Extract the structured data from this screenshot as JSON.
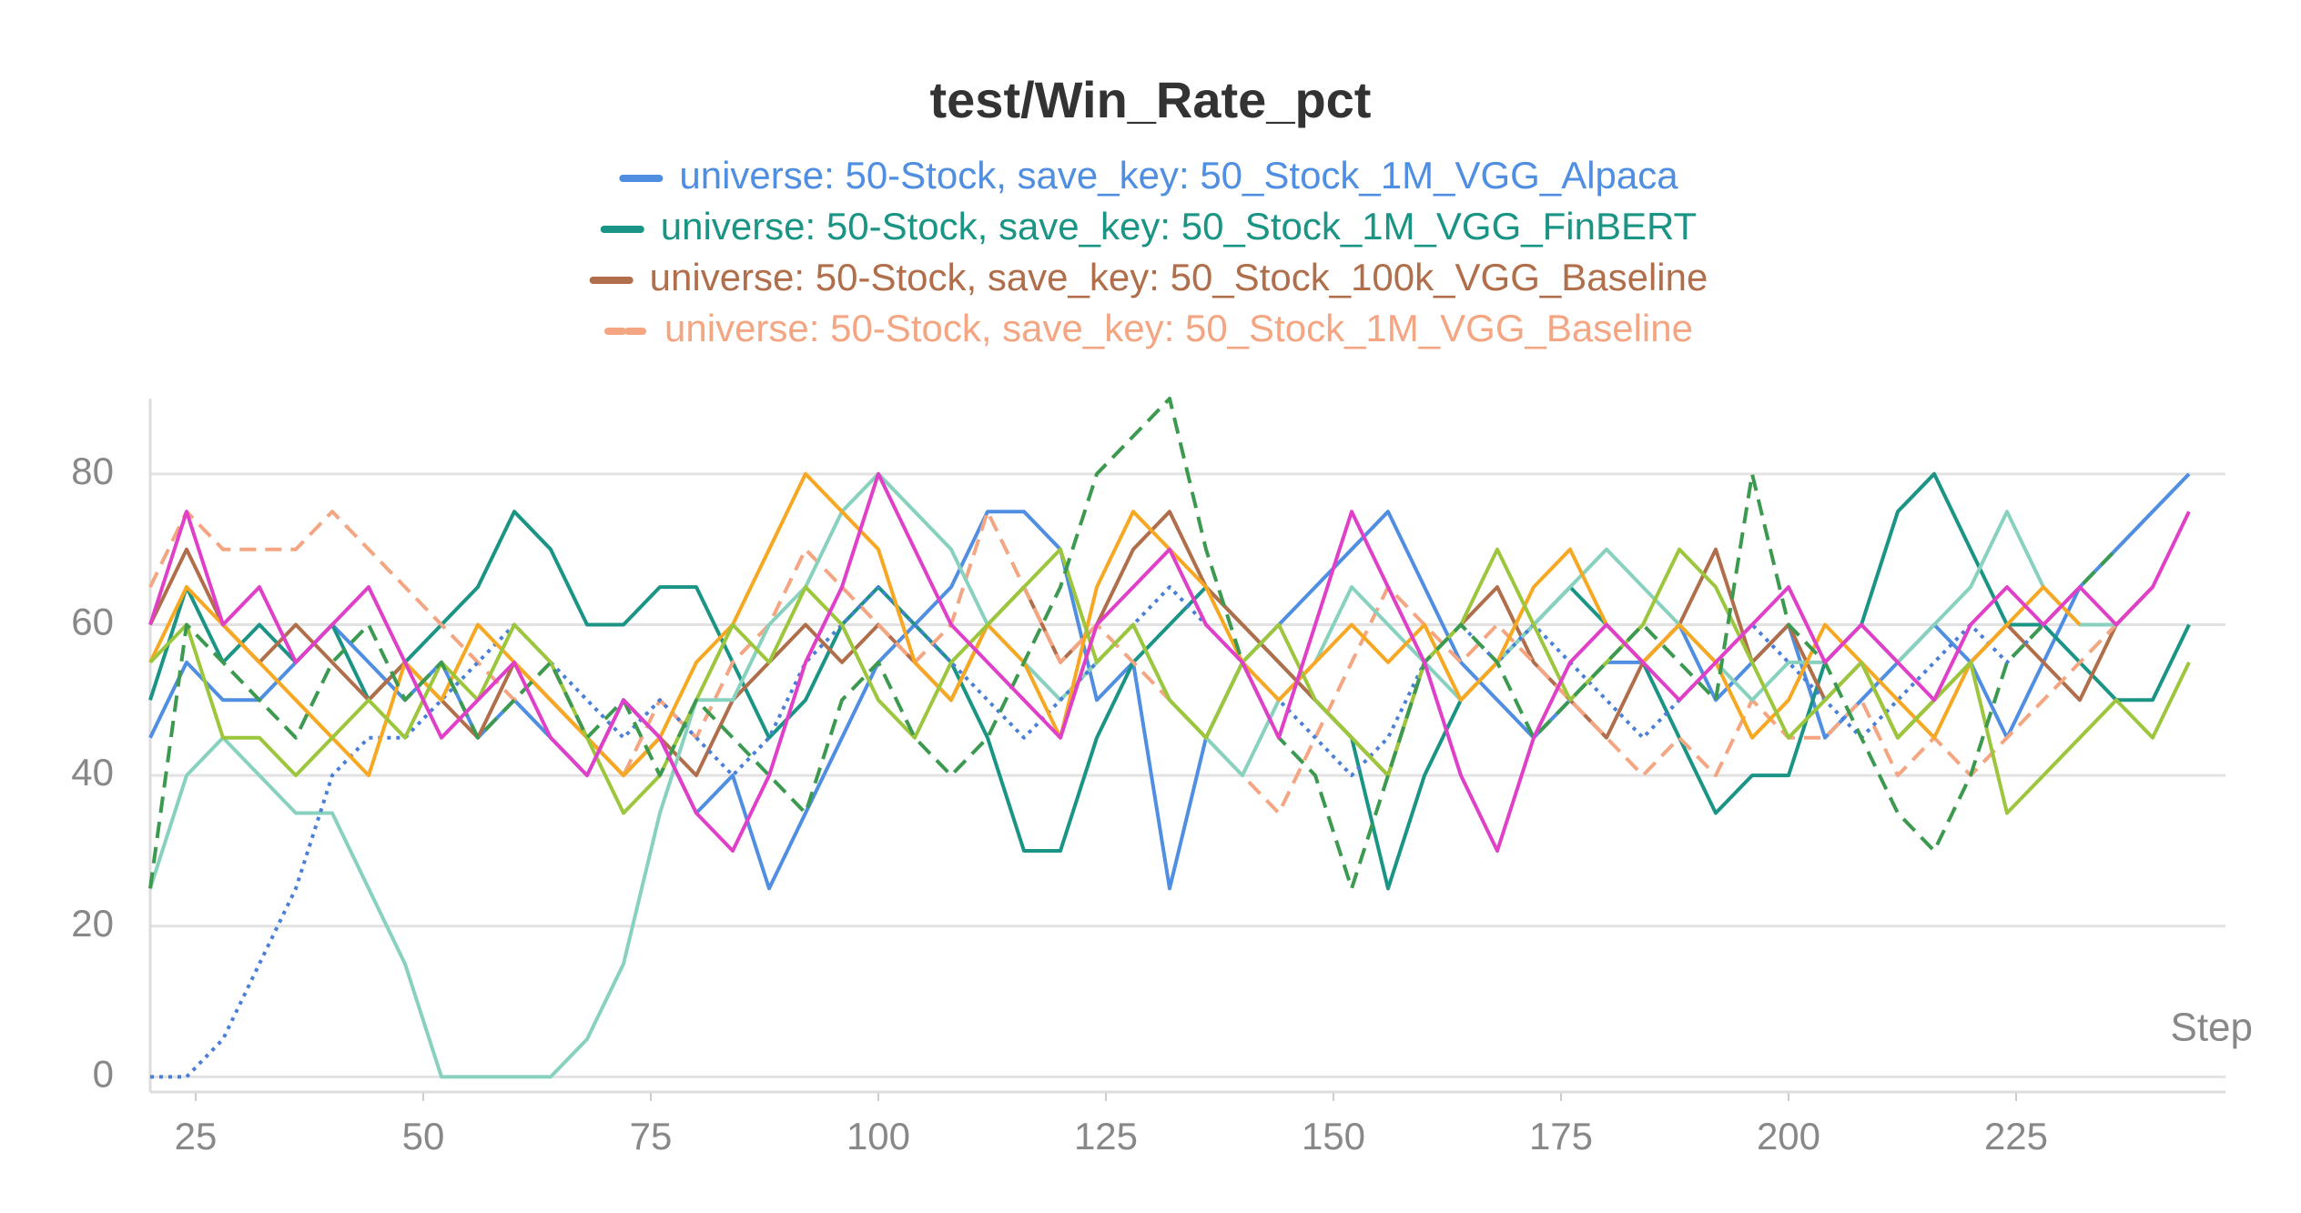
{
  "chart_data": {
    "type": "line",
    "title": "test/Win_Rate_pct",
    "xlabel": "Step",
    "xlim": [
      20,
      248
    ],
    "ylim": [
      -2,
      90
    ],
    "xticks": [
      25,
      50,
      75,
      100,
      125,
      150,
      175,
      200,
      225
    ],
    "yticks": [
      0,
      20,
      40,
      60,
      80
    ],
    "grid": true,
    "x": [
      20,
      24,
      28,
      32,
      36,
      40,
      44,
      48,
      52,
      56,
      60,
      64,
      68,
      72,
      76,
      80,
      84,
      88,
      92,
      96,
      100,
      104,
      108,
      112,
      116,
      120,
      124,
      128,
      132,
      136,
      140,
      144,
      148,
      152,
      156,
      160,
      164,
      168,
      172,
      176,
      180,
      184,
      188,
      192,
      196,
      200,
      204,
      208,
      212,
      216,
      220,
      224,
      228,
      232,
      236,
      240,
      244
    ],
    "series": [
      {
        "name": "universe: 50-Stock, save_key: 50_Stock_1M_VGG_Alpaca",
        "color": "#4f8ee0",
        "dash": "solid",
        "values": [
          45,
          55,
          50,
          50,
          55,
          60,
          55,
          50,
          55,
          45,
          50,
          45,
          40,
          50,
          45,
          35,
          40,
          25,
          35,
          45,
          55,
          60,
          65,
          75,
          75,
          70,
          50,
          55,
          25,
          45,
          55,
          60,
          65,
          70,
          75,
          65,
          55,
          50,
          45,
          50,
          55,
          55,
          60,
          50,
          55,
          60,
          45,
          50,
          55,
          60,
          55,
          45,
          55,
          65,
          70,
          75,
          80
        ]
      },
      {
        "name": "universe: 50-Stock, save_key: 50_Stock_1M_VGG_FinBERT",
        "color": "#1a9484",
        "dash": "solid",
        "values": [
          50,
          65,
          55,
          60,
          55,
          60,
          50,
          55,
          60,
          65,
          75,
          70,
          60,
          60,
          65,
          65,
          55,
          45,
          50,
          60,
          65,
          60,
          55,
          45,
          30,
          30,
          45,
          55,
          60,
          65,
          60,
          55,
          50,
          45,
          25,
          40,
          50,
          55,
          60,
          65,
          60,
          55,
          45,
          35,
          40,
          40,
          55,
          60,
          75,
          80,
          70,
          60,
          60,
          55,
          50,
          50,
          60
        ]
      },
      {
        "name": "universe: 50-Stock, save_key: 50_Stock_100k_VGG_Baseline",
        "color": "#b06e4a",
        "dash": "solid",
        "values": [
          60,
          70,
          60,
          55,
          60,
          55,
          50,
          55,
          50,
          45,
          55,
          50,
          45,
          40,
          45,
          40,
          50,
          55,
          60,
          55,
          60,
          55,
          50,
          60,
          65,
          55,
          60,
          70,
          75,
          65,
          60,
          55,
          50,
          45,
          40,
          55,
          60,
          65,
          55,
          50,
          45,
          55,
          60,
          70,
          55,
          60,
          50,
          55,
          45,
          50,
          55,
          60,
          55,
          50,
          60,
          65,
          null
        ]
      },
      {
        "name": "universe: 50-Stock, save_key: 50_Stock_1M_VGG_Baseline",
        "color": "#f4a582",
        "dash": "dashed",
        "values": [
          65,
          75,
          70,
          70,
          70,
          75,
          70,
          65,
          60,
          55,
          50,
          55,
          45,
          40,
          50,
          45,
          55,
          60,
          70,
          65,
          60,
          55,
          60,
          75,
          65,
          55,
          60,
          55,
          50,
          45,
          40,
          35,
          45,
          55,
          65,
          60,
          55,
          60,
          55,
          50,
          45,
          40,
          45,
          40,
          50,
          45,
          45,
          50,
          40,
          45,
          40,
          45,
          50,
          55,
          60,
          65,
          null
        ]
      },
      {
        "color": "#88d1bf",
        "dash": "solid",
        "values": [
          25,
          40,
          45,
          40,
          35,
          35,
          25,
          15,
          0,
          0,
          0,
          0,
          5,
          15,
          35,
          50,
          50,
          60,
          65,
          75,
          80,
          75,
          70,
          60,
          55,
          50,
          55,
          60,
          50,
          45,
          40,
          50,
          55,
          65,
          60,
          55,
          50,
          55,
          60,
          65,
          70,
          65,
          60,
          55,
          50,
          55,
          55,
          60,
          55,
          60,
          65,
          75,
          65,
          60,
          60,
          null,
          null
        ]
      },
      {
        "color": "#4a7fd8",
        "dash": "dotted",
        "values": [
          0,
          0,
          5,
          15,
          25,
          40,
          45,
          45,
          50,
          55,
          60,
          55,
          50,
          45,
          50,
          45,
          40,
          45,
          55,
          60,
          65,
          60,
          55,
          50,
          45,
          50,
          55,
          60,
          65,
          60,
          55,
          50,
          45,
          40,
          45,
          55,
          60,
          55,
          60,
          55,
          50,
          45,
          50,
          55,
          60,
          55,
          50,
          45,
          50,
          55,
          60,
          55,
          60,
          null,
          null,
          null,
          null
        ]
      },
      {
        "color": "#f7a823",
        "dash": "solid",
        "values": [
          55,
          65,
          60,
          55,
          50,
          45,
          40,
          55,
          50,
          60,
          55,
          50,
          45,
          40,
          45,
          55,
          60,
          70,
          80,
          75,
          70,
          55,
          50,
          60,
          55,
          45,
          65,
          75,
          70,
          65,
          55,
          50,
          55,
          60,
          55,
          60,
          50,
          55,
          65,
          70,
          60,
          55,
          60,
          55,
          45,
          50,
          60,
          55,
          50,
          45,
          55,
          60,
          65,
          60,
          null,
          null,
          null
        ]
      },
      {
        "color": "#9cc63c",
        "dash": "solid",
        "values": [
          55,
          60,
          45,
          45,
          40,
          45,
          50,
          45,
          55,
          50,
          60,
          55,
          45,
          35,
          40,
          50,
          60,
          55,
          65,
          60,
          50,
          45,
          55,
          60,
          65,
          70,
          55,
          60,
          50,
          45,
          55,
          60,
          50,
          45,
          40,
          55,
          60,
          70,
          60,
          50,
          55,
          60,
          70,
          65,
          55,
          45,
          50,
          55,
          45,
          50,
          55,
          35,
          40,
          45,
          50,
          45,
          55
        ]
      },
      {
        "color": "#3c9a50",
        "dash": "dashed",
        "values": [
          25,
          60,
          55,
          50,
          45,
          55,
          60,
          50,
          55,
          45,
          50,
          55,
          45,
          50,
          40,
          50,
          45,
          40,
          35,
          50,
          55,
          45,
          40,
          45,
          55,
          65,
          80,
          85,
          90,
          70,
          55,
          45,
          40,
          25,
          40,
          55,
          60,
          55,
          45,
          50,
          55,
          60,
          55,
          50,
          80,
          60,
          55,
          45,
          35,
          30,
          40,
          55,
          60,
          65,
          70,
          null,
          null
        ]
      },
      {
        "color": "#e040c8",
        "dash": "solid",
        "values": [
          60,
          75,
          60,
          65,
          55,
          60,
          65,
          55,
          45,
          50,
          55,
          45,
          40,
          50,
          45,
          35,
          30,
          40,
          55,
          65,
          80,
          70,
          60,
          55,
          50,
          45,
          60,
          65,
          70,
          60,
          55,
          45,
          60,
          75,
          65,
          55,
          40,
          30,
          45,
          55,
          60,
          55,
          50,
          55,
          60,
          65,
          55,
          60,
          55,
          50,
          60,
          65,
          60,
          65,
          60,
          65,
          75
        ]
      }
    ]
  }
}
